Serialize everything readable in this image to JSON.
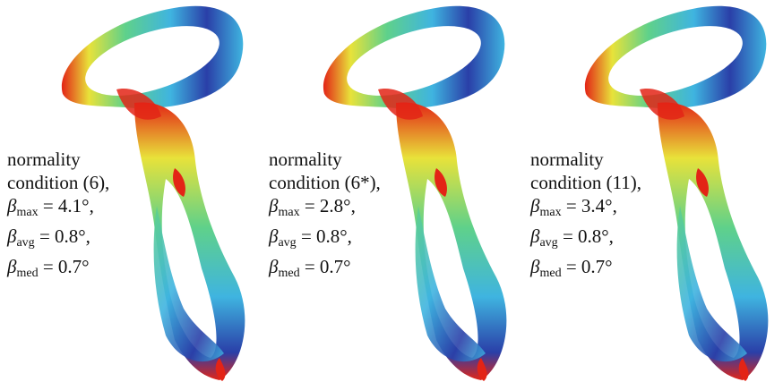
{
  "panels": [
    {
      "line1": "normality",
      "line2": "condition (6),",
      "max_label": "max",
      "max_value": "= 4.1°,",
      "avg_label": "avg",
      "avg_value": "= 0.8°,",
      "med_label": "med",
      "med_value": "= 0.7°"
    },
    {
      "line1": "normality",
      "line2": "condition (6*),",
      "max_label": "max",
      "max_value": "= 2.8°,",
      "avg_label": "avg",
      "avg_value": "= 0.8°,",
      "med_label": "med",
      "med_value": "= 0.7°"
    },
    {
      "line1": "normality",
      "line2": "condition (11),",
      "max_label": "max",
      "max_value": "= 3.4°,",
      "avg_label": "avg",
      "avg_value": "= 0.8°,",
      "med_label": "med",
      "med_value": "= 0.7°"
    }
  ],
  "symbol": "β",
  "colormap": [
    "#2a3fa8",
    "#3fb4e0",
    "#5fd18a",
    "#e8e23a",
    "#e32416"
  ]
}
